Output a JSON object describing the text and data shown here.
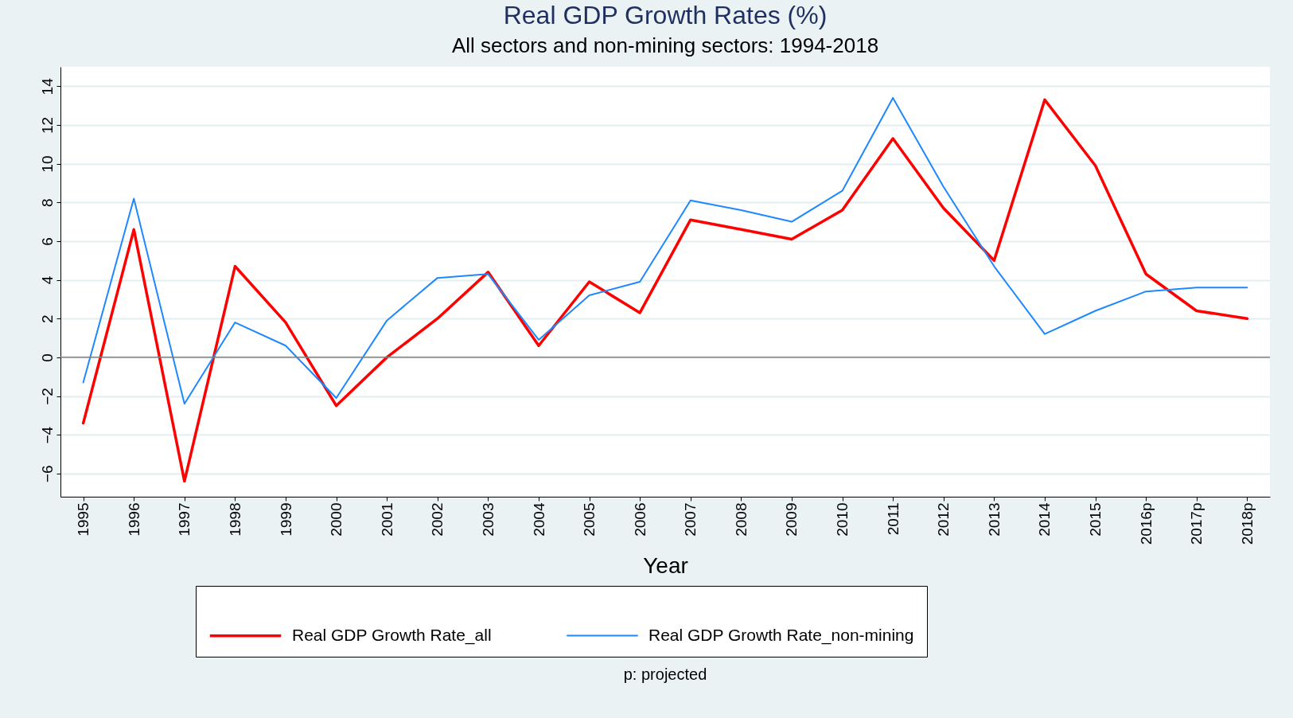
{
  "chart_data": {
    "type": "line",
    "title": "Real GDP Growth Rates (%)",
    "subtitle": "All sectors and non-mining sectors: 1994-2018",
    "xlabel": "Year",
    "categories": [
      "1995",
      "1996",
      "1997",
      "1998",
      "1999",
      "2000",
      "2001",
      "2002",
      "2003",
      "2004",
      "2005",
      "2006",
      "2007",
      "2008",
      "2009",
      "2010",
      "2011",
      "2012",
      "2013",
      "2014",
      "2015",
      "2016p",
      "2017p",
      "2018p"
    ],
    "series": [
      {
        "name": "Real GDP Growth Rate_all",
        "color": "#ff0000",
        "values": [
          -3.4,
          6.6,
          -6.4,
          4.7,
          1.8,
          -2.5,
          0,
          2.0,
          4.4,
          0.6,
          3.9,
          2.3,
          7.1,
          6.6,
          6.1,
          7.6,
          11.3,
          7.7,
          5.0,
          13.3,
          9.9,
          4.3,
          2.4,
          2.0
        ]
      },
      {
        "name": "Real GDP Growth Rate_non-mining",
        "color": "#1e88ff",
        "values": [
          -1.3,
          8.2,
          -2.4,
          1.8,
          0.6,
          -2.1,
          1.9,
          4.1,
          4.3,
          0.9,
          3.2,
          3.9,
          8.1,
          7.6,
          7.0,
          8.6,
          13.4,
          8.8,
          4.7,
          1.2,
          2.4,
          3.4,
          3.6,
          3.6
        ]
      }
    ],
    "ylim": [
      -7.2,
      15
    ],
    "yticks": [
      -6,
      -4,
      -2,
      0,
      2,
      4,
      6,
      8,
      10,
      12,
      14
    ],
    "grid": "y",
    "legend": "bottom",
    "line_style": "solid",
    "marker": "none",
    "ref_lines": [
      {
        "axis": "y",
        "value": 0,
        "color": "#808080"
      }
    ],
    "annotations": [
      "p: projected"
    ]
  }
}
